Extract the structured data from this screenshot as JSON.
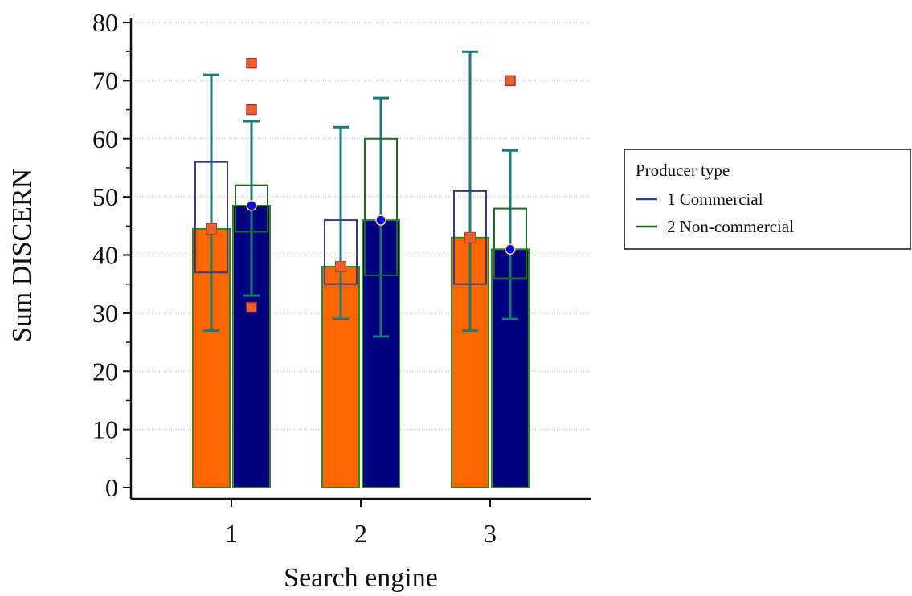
{
  "chart_data": {
    "type": "bar",
    "xlabel": "Search engine",
    "ylabel": "Sum DISCERN",
    "ylim": [
      0,
      80
    ],
    "yticks": [
      0,
      10,
      20,
      30,
      40,
      50,
      60,
      70,
      80
    ],
    "categories": [
      "1",
      "2",
      "3"
    ],
    "grid": "horizontal dotted",
    "legend": {
      "title": "Producer type",
      "placement": "right",
      "entries": [
        "1 Commercial",
        "2 Non-commercial"
      ]
    },
    "series": [
      {
        "name": "1 Commercial",
        "values": [
          44.5,
          38,
          43
        ],
        "box": [
          {
            "q1": 37,
            "q3": 56,
            "whisker_low": 27,
            "whisker_high": 71,
            "outliers": []
          },
          {
            "q1": 35,
            "q3": 46,
            "whisker_low": 29,
            "whisker_high": 62,
            "outliers": []
          },
          {
            "q1": 35,
            "q3": 51,
            "whisker_low": 27,
            "whisker_high": 75,
            "outliers": []
          }
        ]
      },
      {
        "name": "2 Non-commercial",
        "values": [
          48.5,
          46,
          41
        ],
        "box": [
          {
            "q1": 44,
            "q3": 52,
            "whisker_low": 33,
            "whisker_high": 63,
            "outliers": [
              31,
              65,
              73
            ]
          },
          {
            "q1": 36.5,
            "q3": 60,
            "whisker_low": 26,
            "whisker_high": 67,
            "outliers": []
          },
          {
            "q1": 36,
            "q3": 48,
            "whisker_low": 29,
            "whisker_high": 58,
            "outliers": [
              70
            ]
          }
        ]
      }
    ],
    "colors": {
      "commercial_bar": "#ff6600",
      "noncommercial_bar": "#000080",
      "bar_border": "#2e8b1e",
      "whisker": "#1a7a7a",
      "commercial_box": "#3a3a8a",
      "noncommercial_box": "#1e6b1e",
      "outlier_fill": "#e8602c",
      "outlier_border": "#b03030",
      "mean_marker": "#0000ff"
    }
  }
}
